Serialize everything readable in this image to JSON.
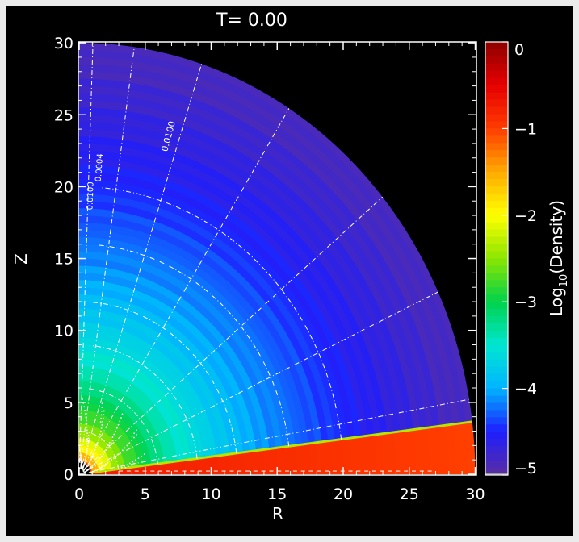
{
  "chart_data": {
    "type": "heatmap",
    "title": "T= 0.00",
    "xlabel": "R",
    "ylabel": "Z",
    "xlim": [
      0,
      30
    ],
    "ylim": [
      0,
      30
    ],
    "x_ticks": [
      "0",
      "5",
      "10",
      "15",
      "20",
      "25",
      "30"
    ],
    "y_ticks": [
      "0",
      "5",
      "10",
      "15",
      "20",
      "25",
      "30"
    ],
    "colorbar": {
      "label_main": "Log",
      "label_sub": "10",
      "label_paren": "(Density)",
      "range": [
        -5,
        0
      ],
      "ticks": [
        "0",
        "−1",
        "−2",
        "−3",
        "−4",
        "−5"
      ],
      "colormap": [
        "#5a2ea0",
        "#1e1eff",
        "#00b4ff",
        "#00e6d2",
        "#00d24b",
        "#8ce600",
        "#ffff00",
        "#ffaa00",
        "#ff3c00",
        "#e60000",
        "#8c0000"
      ]
    },
    "outer_radius": 30,
    "disk_opening_angle_deg": 7,
    "density_model": "log10(rho) = -0.8 - 2.4*log10(r/0.6), clipped to [-5, 0]; disk region log10(rho) ~ -0.7 to -1.0",
    "contour_labels": [
      "0.0100",
      "0.0004",
      "0.0100"
    ],
    "field_line_angles_deg": [
      10,
      25,
      40,
      58,
      72,
      82,
      88
    ],
    "field_line_arc_radii": [
      3,
      6,
      9,
      12,
      16,
      20
    ]
  }
}
